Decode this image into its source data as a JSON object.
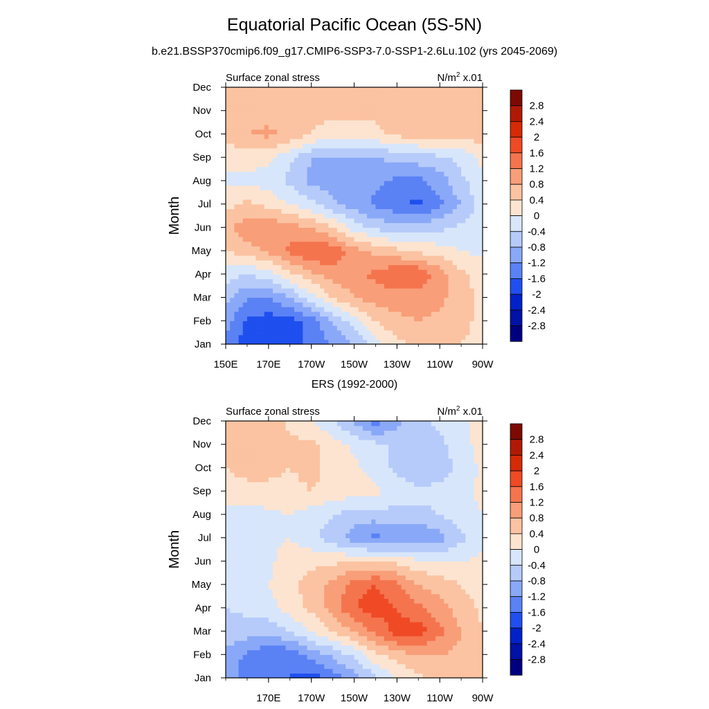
{
  "figure": {
    "title": "Equatorial Pacific Ocean (5S-5N)",
    "subtitle": "b.e21.BSSP370cmip6.f09_g17.CMIP6-SSP3-7.0-SSP1-2.6Lu.102 (yrs 2045-2069)",
    "middle_title": "ERS (1992-2000)"
  },
  "colors": {
    "palette": [
      "#000080",
      "#0011a6",
      "#0022c8",
      "#1f4fee",
      "#5a82f5",
      "#8aa8f8",
      "#b6cbfa",
      "#d8e6fb",
      "#fde4d0",
      "#fbc3a2",
      "#f89e78",
      "#f4744e",
      "#ef4a25",
      "#d52a08",
      "#b01a04",
      "#7d0a02"
    ]
  },
  "chart_data": [
    {
      "type": "heatmap",
      "title": "Surface zonal stress",
      "units": "N/m² x.01",
      "units_base": "N/m",
      "units_sup": "2",
      "units_tail": " x.01",
      "xlabel": "",
      "ylabel": "Month",
      "x_tick_labels": [
        "150E",
        "170E",
        "170W",
        "150W",
        "130W",
        "110W",
        "90W"
      ],
      "x_tick_lons": [
        150,
        170,
        190,
        210,
        230,
        250,
        270
      ],
      "xlim": [
        150,
        270
      ],
      "y_tick_labels": [
        "Jan",
        "Feb",
        "Mar",
        "Apr",
        "May",
        "Jun",
        "Jul",
        "Aug",
        "Sep",
        "Oct",
        "Nov",
        "Dec"
      ],
      "ylim": [
        1,
        12
      ],
      "colorbar_labels": [
        "2.8",
        "2.4",
        "2",
        "1.6",
        "1.2",
        "0.8",
        "0.4",
        "0",
        "-0.4",
        "-0.8",
        "-1.2",
        "-1.6",
        "-2",
        "-2.4",
        "-2.8"
      ],
      "levels": [
        -2.8,
        -2.4,
        -2,
        -1.6,
        -1.2,
        -0.8,
        -0.4,
        0,
        0.4,
        0.8,
        1.2,
        1.6,
        2,
        2.4,
        2.8
      ],
      "grid": false,
      "lon": [
        150,
        160,
        170,
        180,
        190,
        200,
        210,
        220,
        230,
        240,
        250,
        260,
        270
      ],
      "month": [
        1,
        2,
        3,
        4,
        5,
        6,
        7,
        8,
        9,
        10,
        11,
        12
      ],
      "z": [
        [
          -1.3,
          -1.8,
          -2.0,
          -1.8,
          -1.5,
          -1.2,
          -0.8,
          -0.2,
          0.3,
          0.5,
          0.5,
          0.4,
          0.3
        ],
        [
          -1.0,
          -1.7,
          -1.8,
          -1.8,
          -1.4,
          -0.8,
          -0.2,
          0.4,
          0.7,
          0.8,
          0.7,
          0.5,
          0.3
        ],
        [
          -0.7,
          -1.2,
          -1.2,
          -0.8,
          -0.2,
          0.4,
          0.8,
          1.0,
          1.0,
          1.0,
          0.9,
          0.6,
          0.3
        ],
        [
          -0.2,
          -0.4,
          -0.2,
          0.3,
          0.7,
          1.0,
          1.1,
          1.3,
          1.6,
          1.6,
          1.0,
          0.5,
          0.2
        ],
        [
          0.4,
          0.6,
          0.9,
          1.3,
          1.6,
          1.5,
          1.0,
          0.7,
          0.5,
          0.3,
          0.2,
          0.0,
          -0.1
        ],
        [
          0.6,
          1.1,
          1.1,
          1.0,
          0.8,
          0.4,
          -0.2,
          -0.5,
          -0.6,
          -0.6,
          -0.5,
          -0.3,
          -0.1
        ],
        [
          0.3,
          0.5,
          0.3,
          0.0,
          -0.3,
          -0.7,
          -1.0,
          -1.3,
          -1.5,
          -1.7,
          -1.3,
          -0.8,
          -0.2
        ],
        [
          -0.1,
          -0.1,
          -0.2,
          -0.5,
          -0.9,
          -1.0,
          -1.0,
          -1.1,
          -1.3,
          -1.3,
          -1.0,
          -0.5,
          -0.1
        ],
        [
          0.2,
          0.2,
          0.1,
          -0.3,
          -0.8,
          -0.9,
          -0.8,
          -0.8,
          -0.7,
          -0.6,
          -0.5,
          -0.3,
          0.1
        ],
        [
          0.5,
          0.8,
          0.9,
          0.7,
          0.4,
          0.2,
          0.2,
          0.3,
          0.5,
          0.6,
          0.6,
          0.6,
          0.6
        ],
        [
          0.5,
          0.6,
          0.6,
          0.5,
          0.5,
          0.5,
          0.5,
          0.5,
          0.5,
          0.5,
          0.5,
          0.5,
          0.5
        ],
        [
          0.6,
          0.5,
          0.5,
          0.5,
          0.5,
          0.4,
          0.4,
          0.4,
          0.4,
          0.4,
          0.4,
          0.5,
          0.5
        ]
      ]
    },
    {
      "type": "heatmap",
      "title": "Surface zonal stress",
      "units": "N/m² x.01",
      "units_base": "N/m",
      "units_sup": "2",
      "units_tail": " x.01",
      "xlabel": "",
      "ylabel": "Month",
      "x_tick_labels": [
        "170E",
        "170W",
        "150W",
        "130W",
        "110W",
        "90W"
      ],
      "x_tick_lons": [
        170,
        190,
        210,
        230,
        250,
        270
      ],
      "xlim": [
        150,
        270
      ],
      "y_tick_labels": [
        "Jan",
        "Feb",
        "Mar",
        "Apr",
        "May",
        "Jun",
        "Jul",
        "Aug",
        "Sep",
        "Oct",
        "Nov",
        "Dec"
      ],
      "ylim": [
        1,
        12
      ],
      "colorbar_labels": [
        "2.8",
        "2.4",
        "2",
        "1.6",
        "1.2",
        "0.8",
        "0.4",
        "0",
        "-0.4",
        "-0.8",
        "-1.2",
        "-1.6",
        "-2",
        "-2.4",
        "-2.8"
      ],
      "levels": [
        -2.8,
        -2.4,
        -2,
        -1.6,
        -1.2,
        -0.8,
        -0.4,
        0,
        0.4,
        0.8,
        1.2,
        1.6,
        2,
        2.4,
        2.8
      ],
      "grid": false,
      "lon": [
        150,
        160,
        170,
        180,
        190,
        200,
        210,
        220,
        230,
        240,
        250,
        260,
        270
      ],
      "month": [
        1,
        2,
        3,
        4,
        5,
        6,
        7,
        8,
        9,
        10,
        11,
        12
      ],
      "z": [
        [
          -1.0,
          -1.4,
          -1.5,
          -1.6,
          -1.8,
          -1.4,
          -1.0,
          -0.5,
          0.0,
          0.3,
          0.5,
          0.5,
          0.4
        ],
        [
          -0.9,
          -1.3,
          -1.6,
          -1.5,
          -1.0,
          -0.7,
          -0.3,
          0.3,
          0.6,
          0.8,
          0.8,
          0.7,
          0.4
        ],
        [
          -0.5,
          -0.6,
          -0.6,
          -0.4,
          0.0,
          0.4,
          0.8,
          1.3,
          1.8,
          1.8,
          1.3,
          0.8,
          0.4
        ],
        [
          -0.4,
          -0.3,
          -0.2,
          0.2,
          0.5,
          1.0,
          1.6,
          1.8,
          1.6,
          1.3,
          1.0,
          0.6,
          0.3
        ],
        [
          -0.2,
          -0.2,
          0.0,
          0.3,
          0.6,
          0.9,
          1.4,
          1.6,
          1.3,
          0.8,
          0.6,
          0.4,
          0.2
        ],
        [
          -0.3,
          -0.2,
          -0.1,
          0.2,
          0.3,
          0.3,
          0.4,
          0.4,
          0.3,
          0.1,
          0.0,
          0.0,
          0.1
        ],
        [
          -0.2,
          -0.2,
          -0.1,
          0.0,
          -0.3,
          -0.6,
          -1.0,
          -1.3,
          -1.1,
          -1.2,
          -1.0,
          -0.5,
          -0.1
        ],
        [
          -0.2,
          -0.2,
          -0.1,
          0.0,
          -0.2,
          -0.4,
          -0.6,
          -0.6,
          -0.5,
          -0.5,
          -0.4,
          -0.2,
          0.0
        ],
        [
          0.3,
          0.3,
          0.3,
          0.3,
          0.4,
          0.3,
          0.2,
          0.1,
          -0.2,
          -0.3,
          -0.3,
          -0.1,
          0.1
        ],
        [
          0.4,
          0.5,
          0.5,
          0.4,
          0.5,
          0.3,
          0.1,
          -0.2,
          -0.5,
          -0.7,
          -0.6,
          -0.3,
          0.1
        ],
        [
          0.6,
          0.5,
          0.6,
          0.5,
          0.5,
          0.2,
          -0.1,
          -0.3,
          -0.5,
          -0.6,
          -0.5,
          -0.2,
          0.2
        ],
        [
          0.4,
          0.5,
          0.6,
          0.3,
          0.0,
          -0.4,
          -0.9,
          -1.4,
          -0.9,
          -0.5,
          -0.3,
          -0.1,
          0.2
        ]
      ]
    }
  ]
}
